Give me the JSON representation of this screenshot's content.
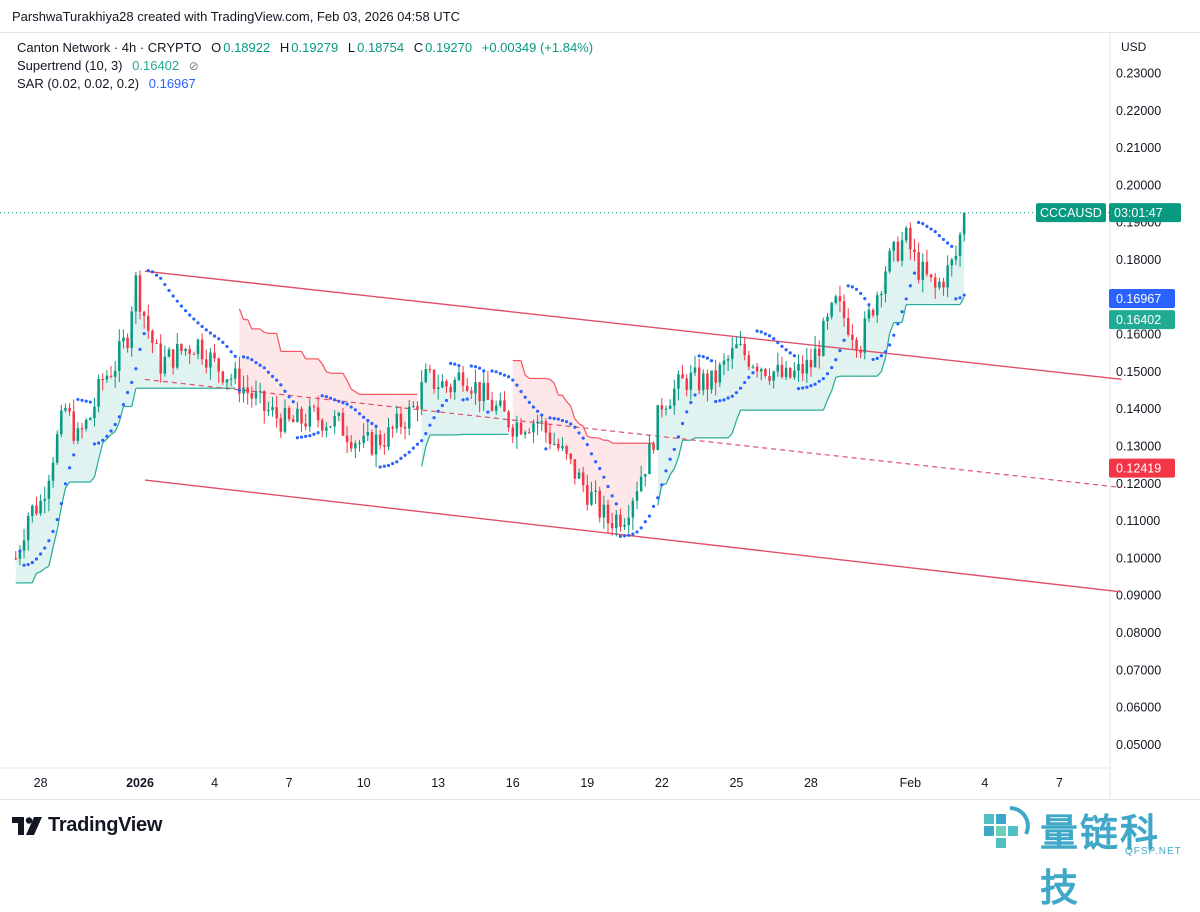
{
  "header": {
    "attribution": "ParshwaTurakhiya28 created with TradingView.com, Feb 03, 2026 04:58 UTC"
  },
  "legend": {
    "symbol": "Canton Network · 4h · CRYPTO",
    "o_label": "O",
    "o": "0.18922",
    "h_label": "H",
    "h": "0.19279",
    "l_label": "L",
    "l": "0.18754",
    "c_label": "C",
    "c": "0.19270",
    "change": "+0.00349 (+1.84%)",
    "supertrend_label": "Supertrend (10, 3)",
    "supertrend_value": "0.16402",
    "sar_label": "SAR (0.02, 0.02, 0.2)",
    "sar_value": "0.16967"
  },
  "axis": {
    "currency": "USD"
  },
  "badges": {
    "symbol": "CCCAUSD",
    "countdown": "03:01:47",
    "sar": "0.16967",
    "supertrend": "0.16402",
    "mid_channel": "0.12419"
  },
  "footer": {
    "brand": "TradingView",
    "watermark_title": "量链科技",
    "watermark_sub": "QFSP.NET"
  },
  "colors": {
    "up": "#089981",
    "down": "#f23645",
    "sar": "#2962ff",
    "supertrend_up": "#22ab94",
    "supertrend_down": "#f7525f",
    "channel": "#e0506b"
  },
  "chart_data": {
    "type": "candlestick",
    "ylim": [
      0.04,
      0.235
    ],
    "y_ticks": [
      "0.23000",
      "0.22000",
      "0.21000",
      "0.20000",
      "0.19000",
      "0.18000",
      "0.17000",
      "0.16000",
      "0.15000",
      "0.14000",
      "0.13000",
      "0.12000",
      "0.11000",
      "0.10000",
      "0.09000",
      "0.08000",
      "0.07000",
      "0.06000",
      "0.05000"
    ],
    "x_ticks": [
      {
        "label": "28",
        "day": -4
      },
      {
        "label": "2026",
        "day": 0
      },
      {
        "label": "4",
        "day": 3
      },
      {
        "label": "7",
        "day": 6
      },
      {
        "label": "10",
        "day": 9
      },
      {
        "label": "13",
        "day": 12
      },
      {
        "label": "16",
        "day": 15
      },
      {
        "label": "19",
        "day": 18
      },
      {
        "label": "22",
        "day": 21
      },
      {
        "label": "25",
        "day": 24
      },
      {
        "label": "28",
        "day": 27
      },
      {
        "label": "Feb",
        "day": 31
      },
      {
        "label": "4",
        "day": 34
      },
      {
        "label": "7",
        "day": 37
      }
    ],
    "last_price": 0.1927,
    "price_path": [
      [
        -5.0,
        0.1
      ],
      [
        -4.5,
        0.112
      ],
      [
        -4.0,
        0.115
      ],
      [
        -3.5,
        0.128
      ],
      [
        -3.0,
        0.14
      ],
      [
        -2.5,
        0.132
      ],
      [
        -2.0,
        0.138
      ],
      [
        -1.5,
        0.148
      ],
      [
        -1.0,
        0.152
      ],
      [
        -0.5,
        0.16
      ],
      [
        -0.2,
        0.175
      ],
      [
        0.3,
        0.162
      ],
      [
        0.8,
        0.152
      ],
      [
        1.5,
        0.155
      ],
      [
        2.3,
        0.158
      ],
      [
        3.0,
        0.152
      ],
      [
        4.0,
        0.147
      ],
      [
        5.0,
        0.14
      ],
      [
        6.0,
        0.136
      ],
      [
        7.0,
        0.138
      ],
      [
        8.0,
        0.136
      ],
      [
        9.0,
        0.13
      ],
      [
        10.0,
        0.133
      ],
      [
        11.0,
        0.14
      ],
      [
        11.5,
        0.148
      ],
      [
        12.5,
        0.146
      ],
      [
        13.0,
        0.15
      ],
      [
        14.0,
        0.142
      ],
      [
        15.0,
        0.136
      ],
      [
        16.0,
        0.137
      ],
      [
        17.0,
        0.128
      ],
      [
        18.0,
        0.118
      ],
      [
        18.8,
        0.11
      ],
      [
        19.5,
        0.112
      ],
      [
        20.5,
        0.128
      ],
      [
        21.0,
        0.142
      ],
      [
        22.0,
        0.148
      ],
      [
        23.0,
        0.147
      ],
      [
        24.0,
        0.156
      ],
      [
        25.0,
        0.152
      ],
      [
        26.0,
        0.148
      ],
      [
        27.0,
        0.152
      ],
      [
        28.0,
        0.168
      ],
      [
        29.0,
        0.158
      ],
      [
        30.0,
        0.178
      ],
      [
        30.8,
        0.186
      ],
      [
        31.3,
        0.178
      ],
      [
        32.0,
        0.172
      ],
      [
        32.8,
        0.18
      ],
      [
        33.2,
        0.1927
      ]
    ],
    "series": [
      {
        "name": "Supertrend (10, 3)",
        "last": 0.16402
      },
      {
        "name": "SAR (0.02, 0.02, 0.2)",
        "last": 0.16967
      }
    ],
    "channel": {
      "upper": [
        [
          0.2,
          0.177
        ],
        [
          39.5,
          0.148
        ]
      ],
      "middle": [
        [
          0.2,
          0.148
        ],
        [
          39.5,
          0.119
        ]
      ],
      "lower": [
        [
          0.2,
          0.121
        ],
        [
          39.5,
          0.091
        ]
      ]
    }
  }
}
